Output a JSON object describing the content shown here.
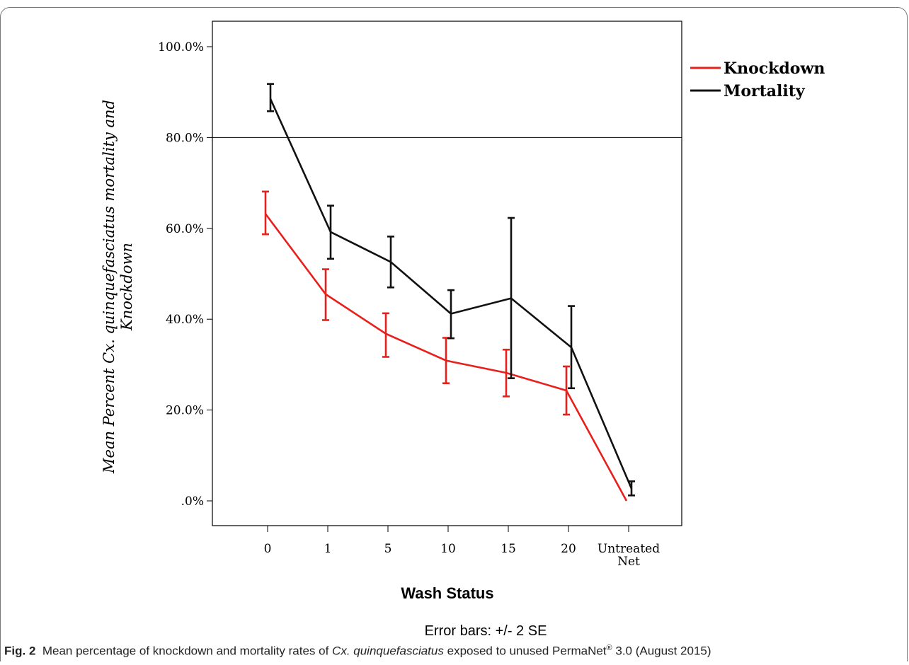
{
  "chart_data": {
    "type": "line",
    "title": "",
    "xlabel": "Wash Status",
    "ylabel_line1": "Mean Percent Cx. quinquefasciatus mortality and",
    "ylabel_line2": "Knockdown",
    "categories": [
      "0",
      "1",
      "5",
      "10",
      "15",
      "20",
      "Untreated Net"
    ],
    "category_lines": [
      [
        "0"
      ],
      [
        "1"
      ],
      [
        "5"
      ],
      [
        "10"
      ],
      [
        "15"
      ],
      [
        "20"
      ],
      [
        "Untreated",
        "Net"
      ]
    ],
    "y_ticks": [
      0,
      20,
      40,
      60,
      80,
      100
    ],
    "y_tick_labels": [
      ".0%",
      "20.0%",
      "40.0%",
      "60.0%",
      "80.0%",
      "100.0%"
    ],
    "ylim": [
      0,
      100
    ],
    "reference_line": 80,
    "grid": false,
    "legend_position": "top-right",
    "series": [
      {
        "name": "Knockdown",
        "color": "#e8201c",
        "values": [
          63.2,
          45.5,
          36.8,
          30.9,
          28.2,
          24.3,
          0.0
        ],
        "err_low": [
          58.7,
          39.8,
          31.7,
          25.9,
          23.0,
          19.0,
          0.0
        ],
        "err_high": [
          68.1,
          51.0,
          41.3,
          35.9,
          33.3,
          29.6,
          0.0
        ]
      },
      {
        "name": "Mortality",
        "color": "#111111",
        "values": [
          88.5,
          59.2,
          52.6,
          41.2,
          44.6,
          33.8,
          2.7
        ],
        "err_low": [
          85.8,
          53.3,
          47.0,
          35.8,
          27.0,
          24.8,
          1.2
        ],
        "err_high": [
          91.8,
          65.0,
          58.2,
          46.4,
          62.3,
          42.9,
          4.3
        ]
      }
    ],
    "footnote": "Error bars: +/- 2 SE"
  },
  "caption": {
    "label": "Fig. 2",
    "text_before": "Mean percentage of knockdown and mortality rates of",
    "species": "Cx. quinquefasciatus",
    "text_middle": "exposed to unused PermaNet",
    "registered": "®",
    "text_after": "3.0 (August 2015)"
  }
}
